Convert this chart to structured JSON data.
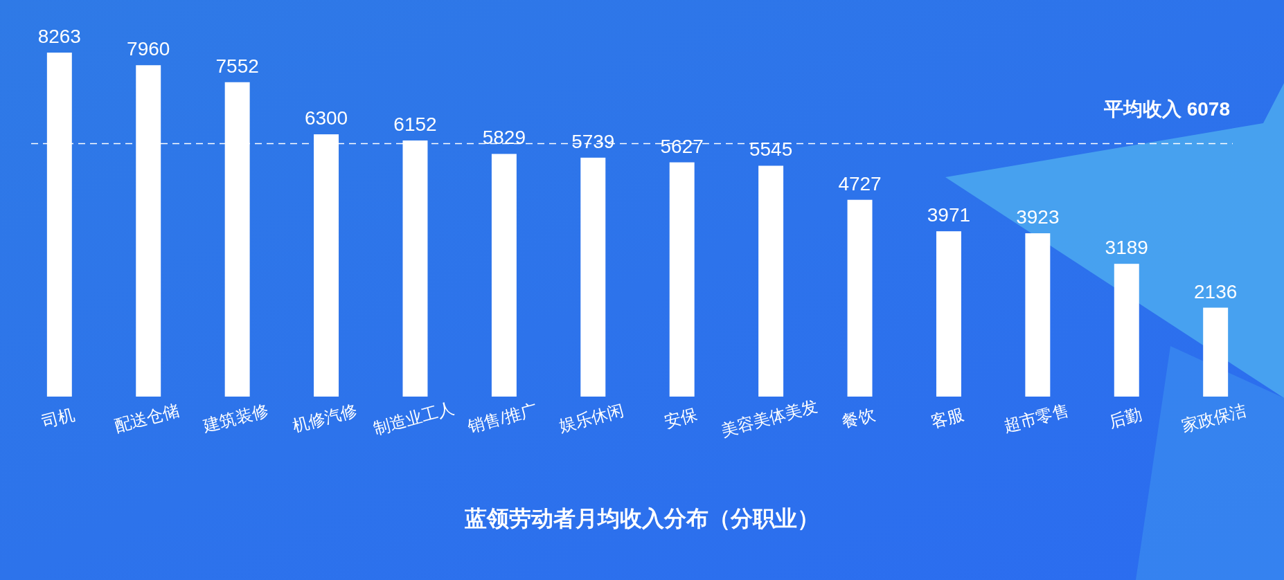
{
  "chart_data": {
    "type": "bar",
    "title": "蓝领劳动者月均收入分布（分职业）",
    "categories": [
      "司机",
      "配送仓储",
      "建筑装修",
      "机修汽修",
      "制造业工人",
      "销售/推广",
      "娱乐休闲",
      "安保",
      "美容美体美发",
      "餐饮",
      "客服",
      "超市零售",
      "后勤",
      "家政保洁"
    ],
    "values": [
      8263,
      7960,
      7552,
      6300,
      6152,
      5829,
      5739,
      5627,
      5545,
      4727,
      3971,
      3923,
      3189,
      2136
    ],
    "color": "#ffffff",
    "data_labels": true,
    "ref_lines": [
      {
        "axis": "y",
        "value": 6078,
        "label": "平均收入 6078",
        "color": "#ffffff",
        "line_style": "dashed"
      }
    ]
  }
}
